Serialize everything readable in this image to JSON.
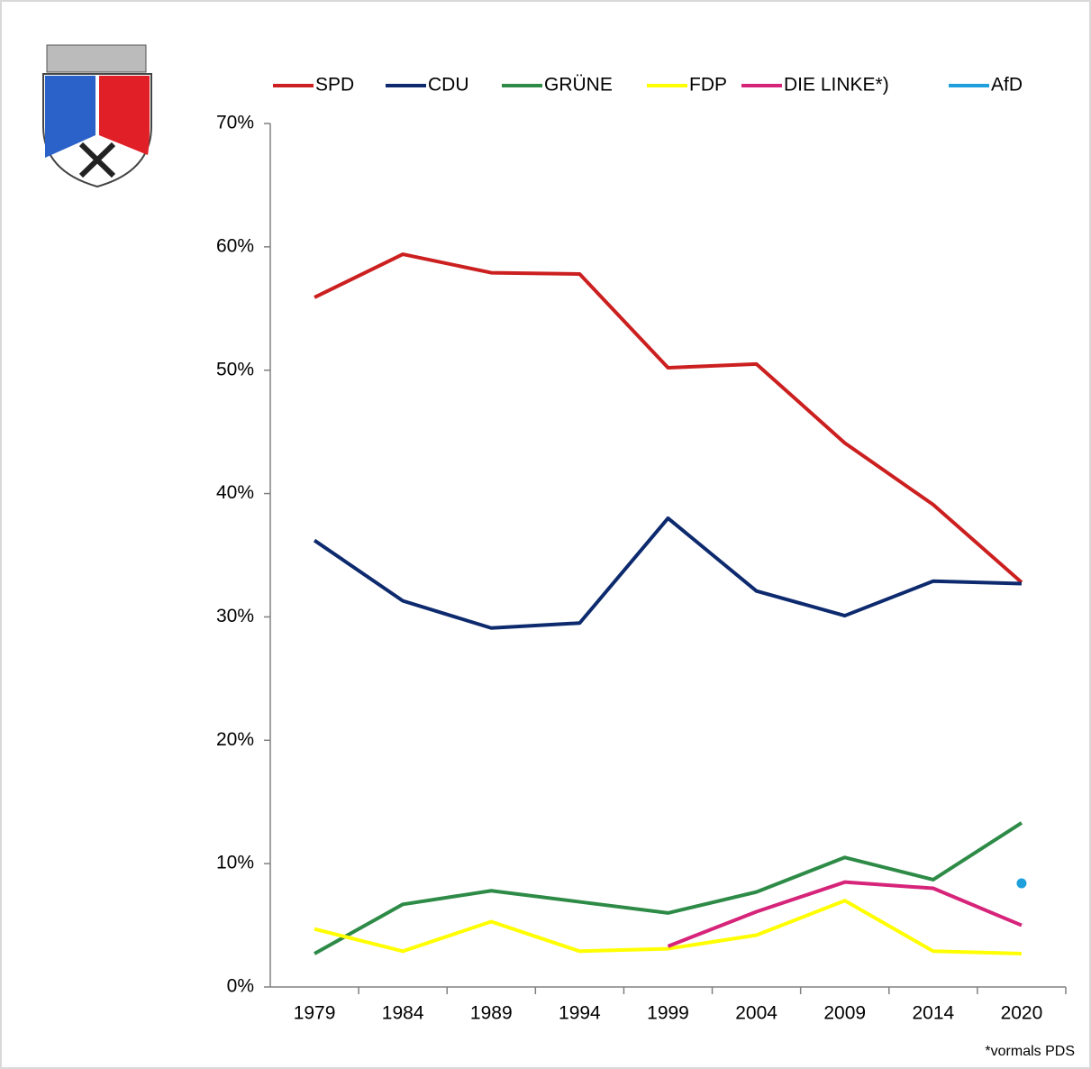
{
  "chart_data": {
    "type": "line",
    "categories": [
      "1979",
      "1984",
      "1989",
      "1994",
      "1999",
      "2004",
      "2009",
      "2014",
      "2020"
    ],
    "series": [
      {
        "name": "SPD",
        "color": "#cc1f1f",
        "values": [
          55.9,
          59.4,
          57.9,
          57.8,
          50.2,
          50.5,
          44.1,
          39.1,
          32.8
        ]
      },
      {
        "name": "CDU",
        "color": "#0d2a6e",
        "values": [
          36.2,
          31.3,
          29.1,
          29.5,
          38.0,
          32.1,
          30.1,
          32.9,
          32.7
        ]
      },
      {
        "name": "GRÜNE",
        "color": "#2e8b47",
        "values": [
          2.7,
          6.7,
          7.8,
          6.9,
          6.0,
          7.7,
          10.5,
          8.7,
          13.3
        ]
      },
      {
        "name": "FDP",
        "color": "#ffff00",
        "values": [
          4.7,
          2.9,
          5.3,
          2.9,
          3.1,
          4.2,
          7.0,
          2.9,
          2.7
        ]
      },
      {
        "name": "DIE LINKE*)",
        "color": "#d6247a",
        "values": [
          null,
          null,
          null,
          null,
          3.3,
          6.1,
          8.5,
          8.0,
          5.0
        ]
      },
      {
        "name": "AfD",
        "color": "#1fa0dc",
        "values": [
          null,
          null,
          null,
          null,
          null,
          null,
          null,
          null,
          8.4
        ]
      }
    ],
    "ylim": [
      0,
      70
    ],
    "yticks": [
      {
        "value": 0,
        "label": "0%"
      },
      {
        "value": 10,
        "label": "10%"
      },
      {
        "value": 20,
        "label": "20%"
      },
      {
        "value": 30,
        "label": "30%"
      },
      {
        "value": 40,
        "label": "40%"
      },
      {
        "value": 50,
        "label": "50%"
      },
      {
        "value": 60,
        "label": "60%"
      },
      {
        "value": 70,
        "label": "70%"
      }
    ],
    "legend": "top",
    "annotation": "*vormals PDS"
  }
}
